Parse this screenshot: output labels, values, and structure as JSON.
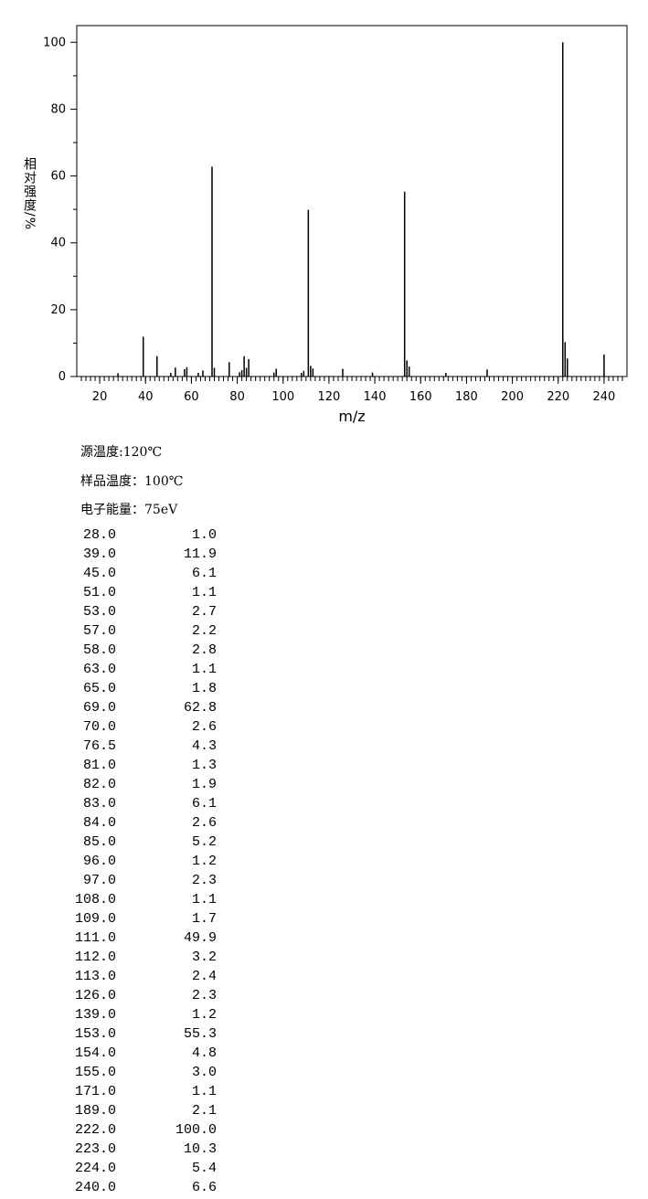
{
  "chart_data": {
    "type": "bar",
    "xlabel": "m/z",
    "ylabel": "相对强度/%",
    "x": [
      28,
      39,
      45,
      51,
      53,
      57,
      58,
      63,
      65,
      69,
      70,
      76.5,
      81,
      82,
      83,
      84,
      85,
      96,
      97,
      108,
      109,
      111,
      112,
      113,
      126,
      139,
      153,
      154,
      155,
      171,
      189,
      222,
      223,
      224,
      240
    ],
    "values": [
      1.0,
      11.9,
      6.1,
      1.1,
      2.7,
      2.2,
      2.8,
      1.1,
      1.8,
      62.8,
      2.6,
      4.3,
      1.3,
      1.9,
      6.1,
      2.6,
      5.2,
      1.2,
      2.3,
      1.1,
      1.7,
      49.9,
      3.2,
      2.4,
      2.3,
      1.2,
      55.3,
      4.8,
      3.0,
      1.1,
      2.1,
      100.0,
      10.3,
      5.4,
      6.6
    ],
    "color": "#000000",
    "xlim": [
      10,
      250
    ],
    "xticks": [
      20,
      40,
      60,
      80,
      100,
      120,
      140,
      160,
      180,
      200,
      220,
      240
    ],
    "ylim": [
      0,
      105
    ],
    "yticks": [
      0,
      20,
      40,
      60,
      80,
      100
    ]
  },
  "info": [
    "源温度:120℃",
    "样品温度：100℃",
    "电子能量：75eV"
  ],
  "table": {
    "rows": [
      [
        "28.0",
        "1.0"
      ],
      [
        "39.0",
        "11.9"
      ],
      [
        "45.0",
        "6.1"
      ],
      [
        "51.0",
        "1.1"
      ],
      [
        "53.0",
        "2.7"
      ],
      [
        "57.0",
        "2.2"
      ],
      [
        "58.0",
        "2.8"
      ],
      [
        "63.0",
        "1.1"
      ],
      [
        "65.0",
        "1.8"
      ],
      [
        "69.0",
        "62.8"
      ],
      [
        "70.0",
        "2.6"
      ],
      [
        "76.5",
        "4.3"
      ],
      [
        "81.0",
        "1.3"
      ],
      [
        "82.0",
        "1.9"
      ],
      [
        "83.0",
        "6.1"
      ],
      [
        "84.0",
        "2.6"
      ],
      [
        "85.0",
        "5.2"
      ],
      [
        "96.0",
        "1.2"
      ],
      [
        "97.0",
        "2.3"
      ],
      [
        "108.0",
        "1.1"
      ],
      [
        "109.0",
        "1.7"
      ],
      [
        "111.0",
        "49.9"
      ],
      [
        "112.0",
        "3.2"
      ],
      [
        "113.0",
        "2.4"
      ],
      [
        "126.0",
        "2.3"
      ],
      [
        "139.0",
        "1.2"
      ],
      [
        "153.0",
        "55.3"
      ],
      [
        "154.0",
        "4.8"
      ],
      [
        "155.0",
        "3.0"
      ],
      [
        "171.0",
        "1.1"
      ],
      [
        "189.0",
        "2.1"
      ],
      [
        "222.0",
        "100.0"
      ],
      [
        "223.0",
        "10.3"
      ],
      [
        "224.0",
        "5.4"
      ],
      [
        "240.0",
        "6.6"
      ]
    ]
  }
}
